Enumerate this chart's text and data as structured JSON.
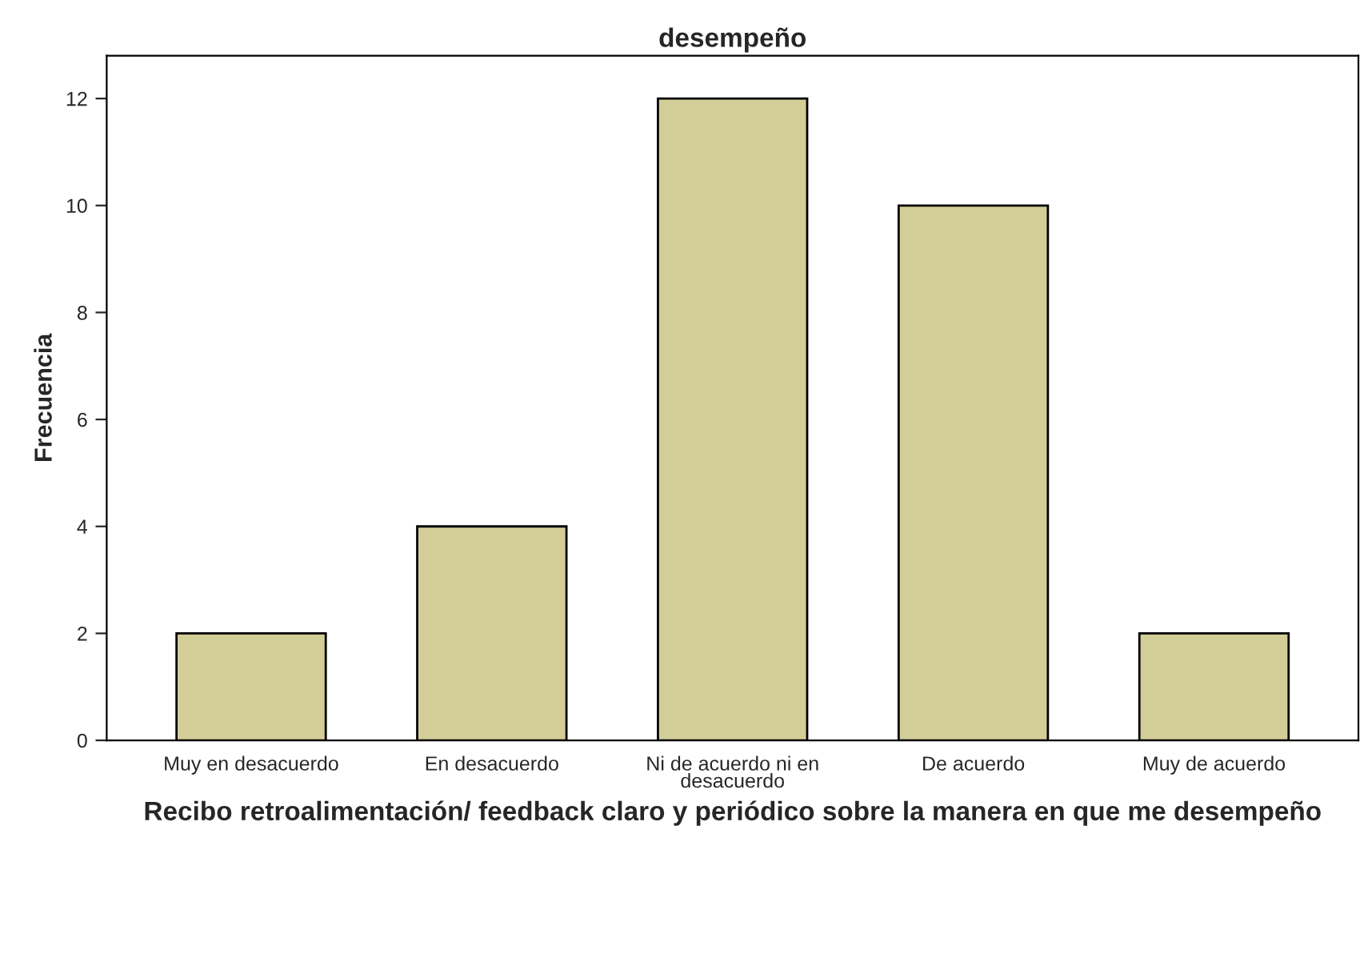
{
  "chart_data": {
    "type": "bar",
    "title": "desempeño",
    "xlabel": "Recibo retroalimentación/ feedback claro y periódico sobre la manera en que me desempeño",
    "ylabel": "Frecuencia",
    "categories": [
      "Muy en desacuerdo",
      "En desacuerdo",
      "Ni de acuerdo ni en\ndesacuerdo",
      "De acuerdo",
      "Muy de acuerdo"
    ],
    "values": [
      2,
      4,
      12,
      10,
      2
    ],
    "color": "#d3ce98",
    "ylim": [
      0,
      12.8
    ],
    "yticks": [
      0,
      2,
      4,
      6,
      8,
      10,
      12
    ],
    "grid": false
  }
}
